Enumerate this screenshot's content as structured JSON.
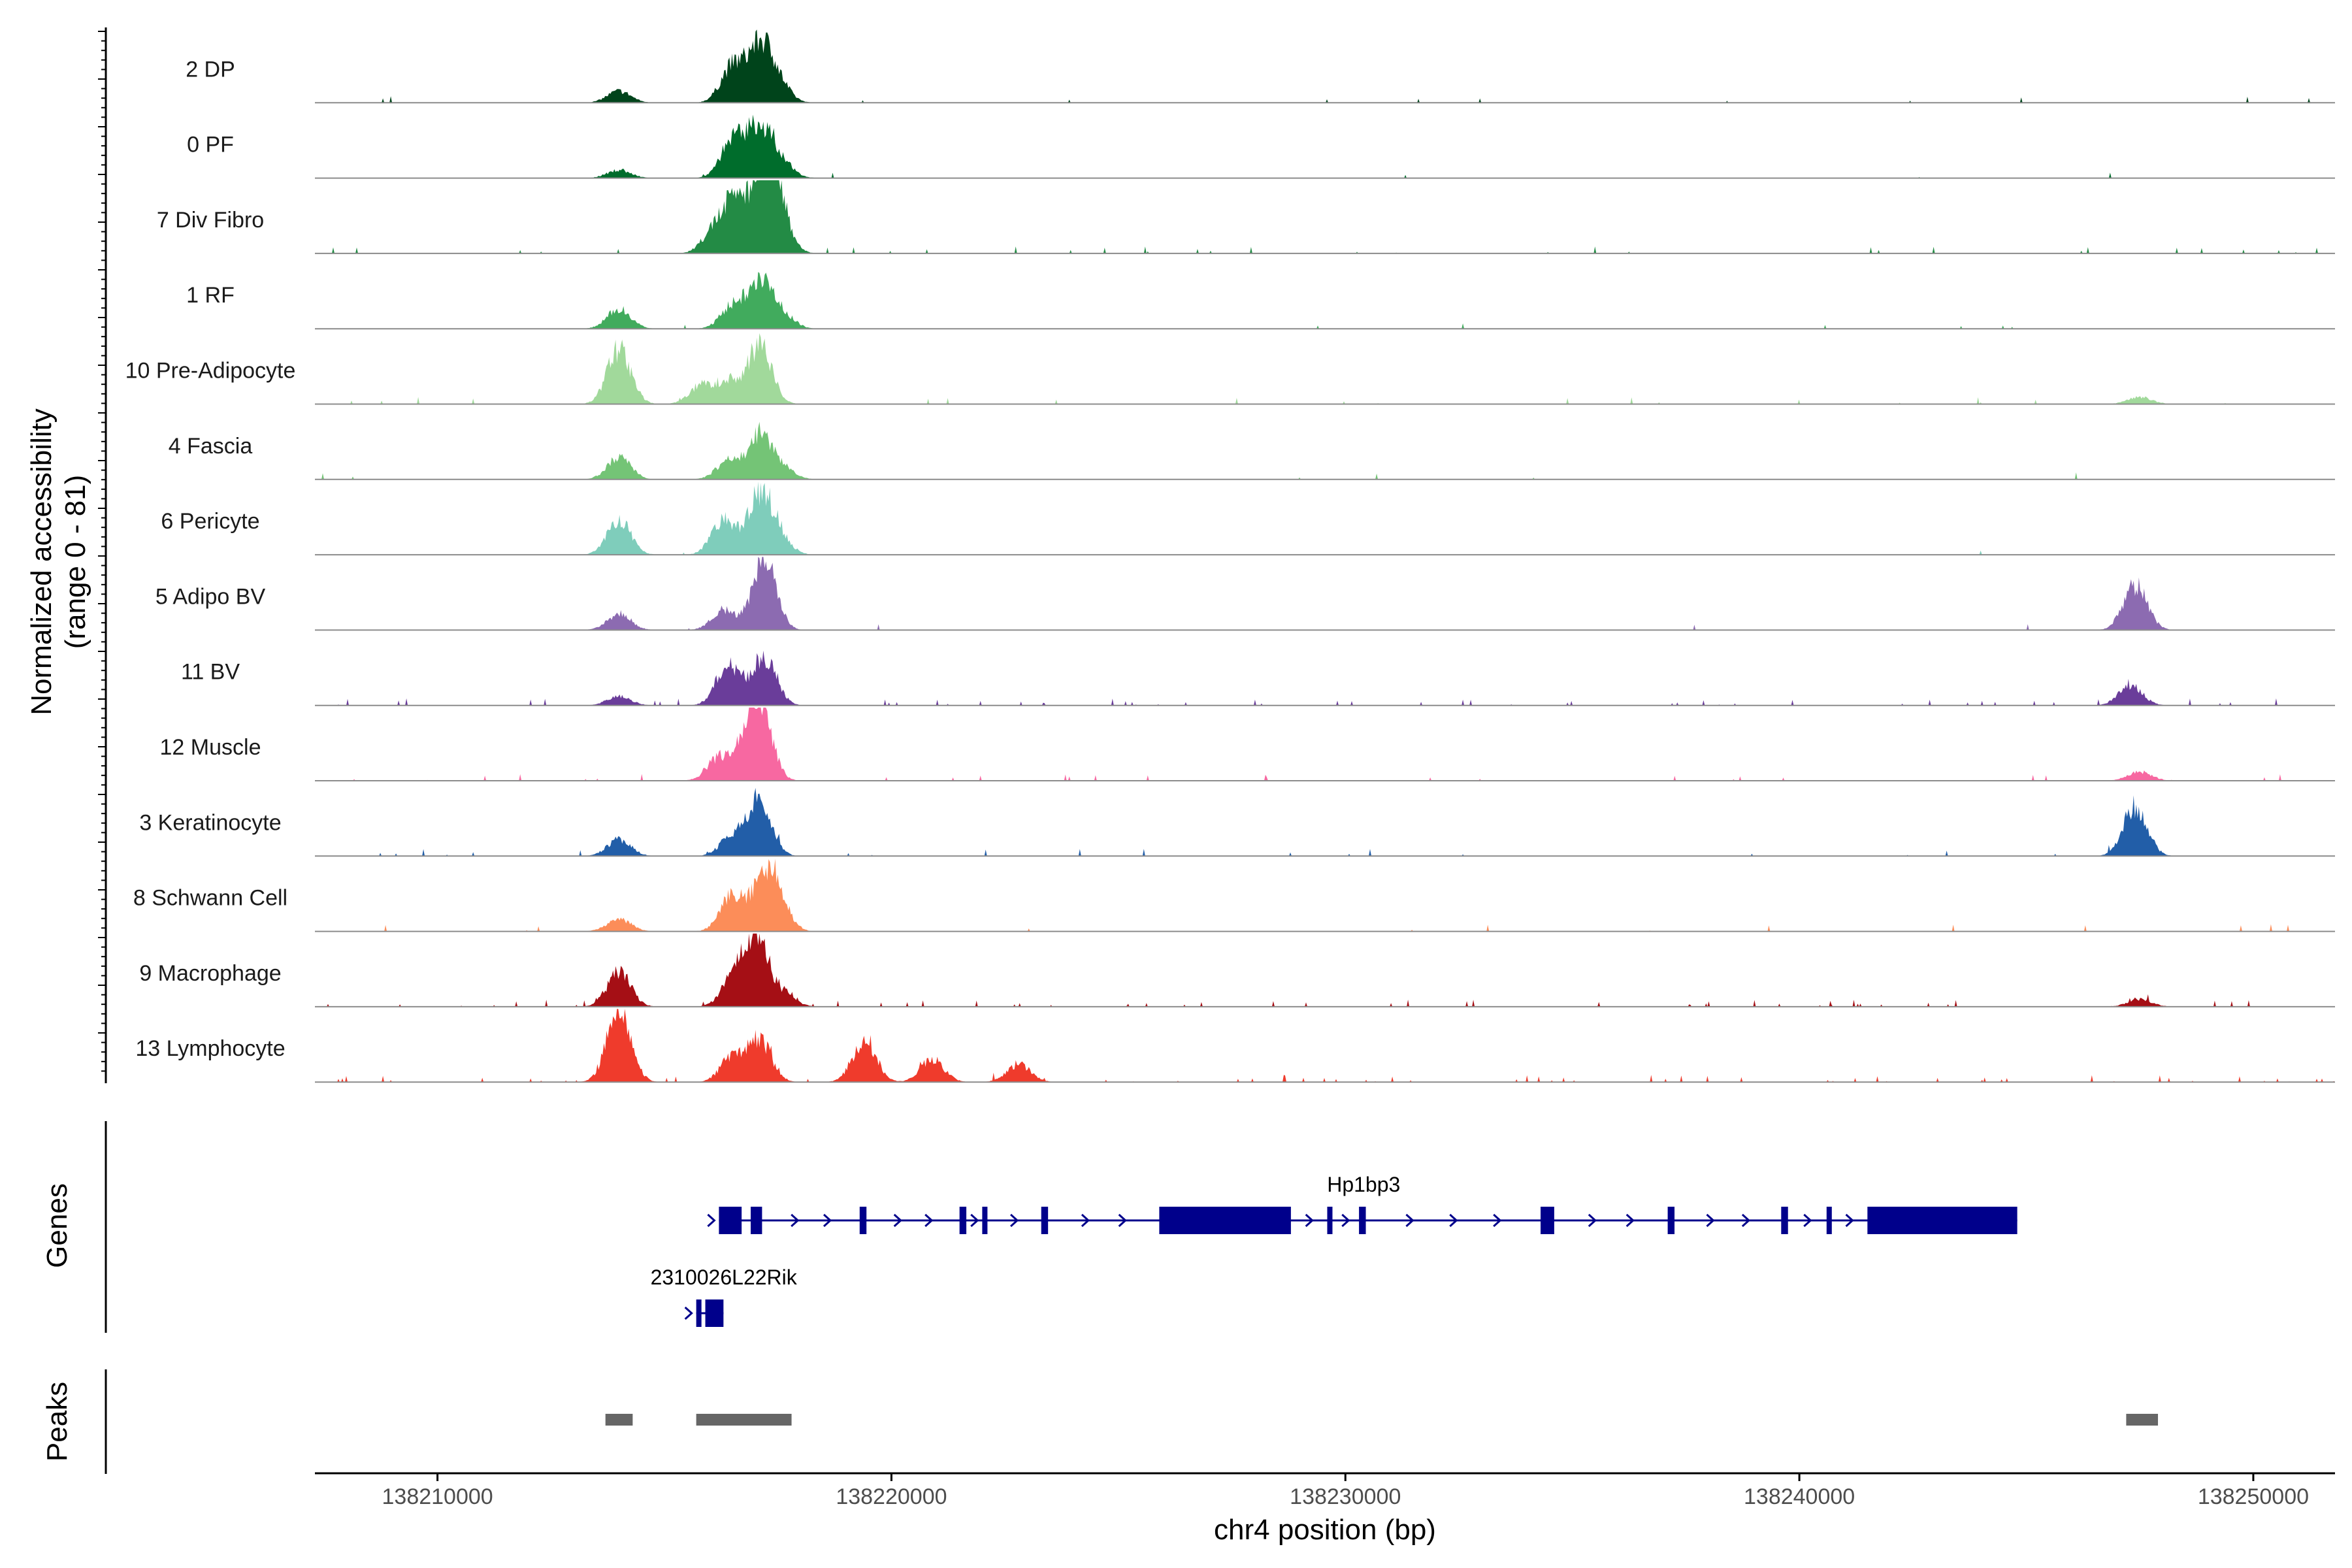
{
  "chart_data": {
    "type": "area",
    "title": "",
    "xlabel": "chr4 position (bp)",
    "ylabel_line1": "Normalized accessibility",
    "ylabel_line2": "(range 0 - 81)",
    "y_range": [
      0,
      81
    ],
    "xlim": [
      138207300,
      138251800
    ],
    "x_ticks": [
      138210000,
      138220000,
      138230000,
      138240000,
      138250000
    ],
    "x_tick_labels": [
      "138210000",
      "138220000",
      "138230000",
      "138240000",
      "138250000"
    ],
    "tracks": [
      {
        "name": "2 DP",
        "color": "#00441b",
        "peaks": [
          [
            138214000,
            13
          ],
          [
            138216500,
            40
          ],
          [
            138217100,
            62
          ],
          [
            138217500,
            20
          ]
        ],
        "noise": 0.05
      },
      {
        "name": "0 PF",
        "color": "#006d2c",
        "peaks": [
          [
            138214000,
            9
          ],
          [
            138216500,
            42
          ],
          [
            138217100,
            58
          ],
          [
            138217600,
            15
          ]
        ],
        "noise": 0.06
      },
      {
        "name": "7 Div Fibro",
        "color": "#238b45",
        "peaks": [
          [
            138216100,
            25
          ],
          [
            138216600,
            60
          ],
          [
            138217200,
            81
          ],
          [
            138217500,
            45
          ]
        ],
        "noise": 0.3
      },
      {
        "name": "1 RF",
        "color": "#41ab5d",
        "peaks": [
          [
            138214000,
            22
          ],
          [
            138216500,
            25
          ],
          [
            138217100,
            55
          ],
          [
            138217600,
            15
          ]
        ],
        "noise": 0.08
      },
      {
        "name": "10 Pre-Adipocyte",
        "color": "#a1d99b",
        "peaks": [
          [
            138214000,
            60
          ],
          [
            138215800,
            20
          ],
          [
            138216400,
            25
          ],
          [
            138217100,
            65
          ],
          [
            138247500,
            8
          ]
        ],
        "noise": 0.2
      },
      {
        "name": "4 Fascia",
        "color": "#74c476",
        "peaks": [
          [
            138214000,
            24
          ],
          [
            138216400,
            20
          ],
          [
            138217100,
            50
          ],
          [
            138217600,
            12
          ]
        ],
        "noise": 0.05
      },
      {
        "name": "6 Pericyte",
        "color": "#7fcdbb",
        "peaks": [
          [
            138214000,
            38
          ],
          [
            138216300,
            38
          ],
          [
            138217100,
            65
          ],
          [
            138217500,
            20
          ]
        ],
        "noise": 0.05
      },
      {
        "name": "5 Adipo BV",
        "color": "#8c6bb1",
        "peaks": [
          [
            138214000,
            18
          ],
          [
            138216300,
            22
          ],
          [
            138217200,
            81
          ],
          [
            138247400,
            50
          ]
        ],
        "noise": 0.05
      },
      {
        "name": "11 BV",
        "color": "#6a3d9a",
        "peaks": [
          [
            138214000,
            10
          ],
          [
            138216400,
            45
          ],
          [
            138217200,
            55
          ],
          [
            138247300,
            22
          ]
        ],
        "noise": 0.45
      },
      {
        "name": "12 Muscle",
        "color": "#f768a1",
        "peaks": [
          [
            138216200,
            25
          ],
          [
            138216800,
            30
          ],
          [
            138217100,
            81
          ],
          [
            138247500,
            10
          ]
        ],
        "noise": 0.25
      },
      {
        "name": "3 Keratinocyte",
        "color": "#225ea8",
        "peaks": [
          [
            138214000,
            18
          ],
          [
            138216500,
            23
          ],
          [
            138217100,
            65
          ],
          [
            138247400,
            55
          ]
        ],
        "noise": 0.18
      },
      {
        "name": "8 Schwann Cell",
        "color": "#fc8d59",
        "peaks": [
          [
            138214000,
            14
          ],
          [
            138216500,
            40
          ],
          [
            138217200,
            55
          ],
          [
            138217500,
            30
          ]
        ],
        "noise": 0.15
      },
      {
        "name": "9 Macrophage",
        "color": "#a50f15",
        "peaks": [
          [
            138214000,
            38
          ],
          [
            138216500,
            28
          ],
          [
            138217000,
            81
          ],
          [
            138217600,
            15
          ],
          [
            138247500,
            8
          ]
        ],
        "noise": 0.55
      },
      {
        "name": "13 Lymphocyte",
        "color": "#ef3b2c",
        "peaks": [
          [
            138214000,
            81
          ],
          [
            138216500,
            28
          ],
          [
            138217100,
            45
          ],
          [
            138219400,
            45
          ],
          [
            138220900,
            25
          ],
          [
            138222800,
            20
          ]
        ],
        "noise": 0.55
      }
    ],
    "genes": [
      {
        "name": "Hp1bp3",
        "start": 138216200,
        "end": 138244800,
        "strand": "+",
        "exons": [
          [
            138216200,
            138216700
          ],
          [
            138216900,
            138217150
          ],
          [
            138219300,
            138219450
          ],
          [
            138221500,
            138221650
          ],
          [
            138222000,
            138222100
          ],
          [
            138223300,
            138223450
          ],
          [
            138225900,
            138228800
          ],
          [
            138229600,
            138229700
          ],
          [
            138230300,
            138230450
          ],
          [
            138234300,
            138234600
          ],
          [
            138237100,
            138237250
          ],
          [
            138239600,
            138239750
          ],
          [
            138240600,
            138240700
          ],
          [
            138241500,
            138244800
          ]
        ]
      },
      {
        "name": "2310026L22Rik",
        "start": 138215700,
        "end": 138216300,
        "strand": "+",
        "exons": [
          [
            138215700,
            138215800
          ],
          [
            138215900,
            138216300
          ]
        ]
      }
    ],
    "peaks": [
      [
        138213700,
        138214300
      ],
      [
        138215700,
        138217800
      ],
      [
        138247200,
        138247900
      ]
    ],
    "panel_labels": {
      "genes": "Genes",
      "peaks": "Peaks"
    },
    "gene_color": "#00008b",
    "peak_color": "#666666",
    "baseline_color": "#8c8c8c",
    "axis_color": "#000000"
  }
}
